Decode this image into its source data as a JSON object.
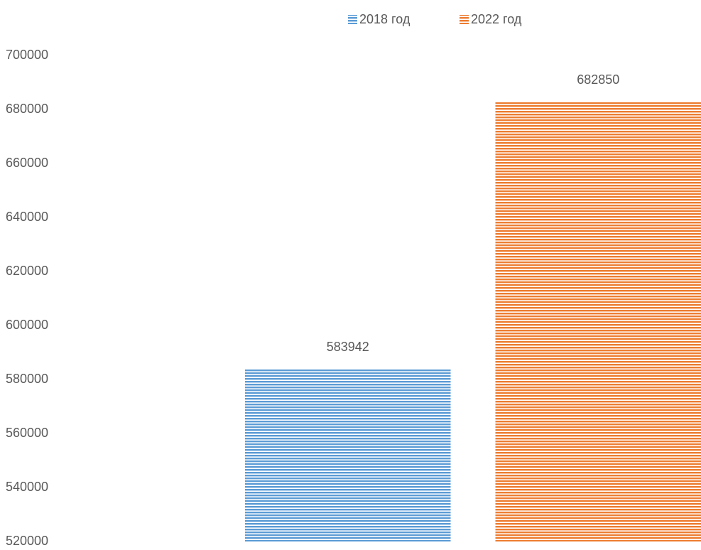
{
  "chart_data": {
    "type": "bar",
    "categories": [
      null
    ],
    "series": [
      {
        "name": "2018 год",
        "color": "#5b9bd5",
        "values": [
          583942
        ]
      },
      {
        "name": "2022 год",
        "color": "#ed7d31",
        "values": [
          682850
        ]
      }
    ],
    "ylim": [
      520000,
      700000
    ],
    "yticks": [
      520000,
      540000,
      560000,
      580000,
      600000,
      620000,
      640000,
      660000,
      680000,
      700000
    ],
    "grid": false,
    "legend": "top"
  }
}
